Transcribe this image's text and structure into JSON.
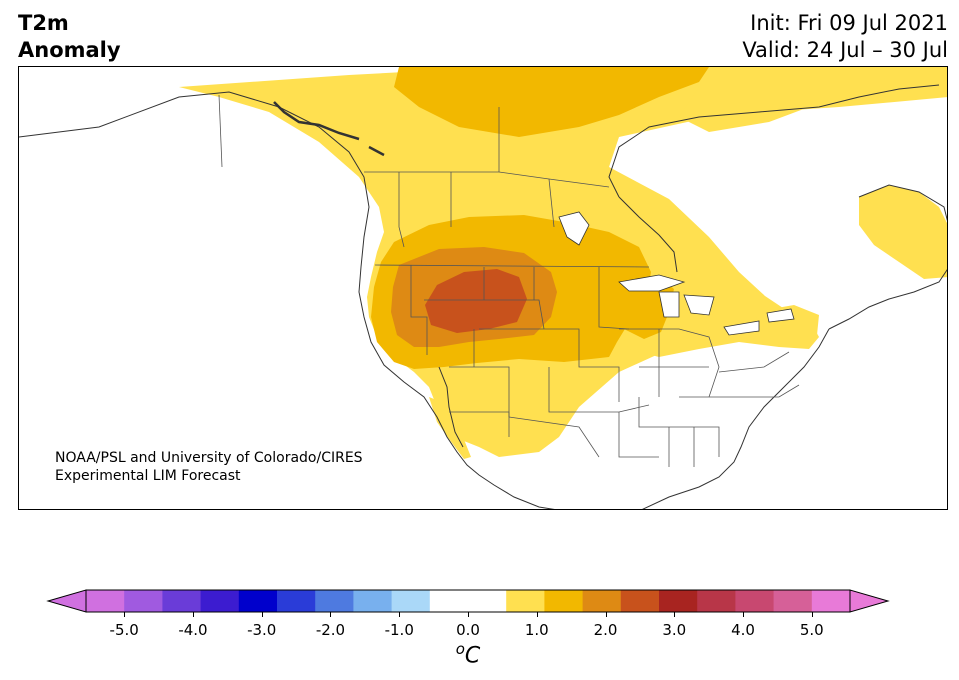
{
  "header": {
    "variable": "T2m",
    "field": "Anomaly",
    "init": "Init: Fri 09 Jul 2021",
    "valid": "Valid: 24 Jul – 30 Jul"
  },
  "credit": {
    "line1": "NOAA/PSL and University of Colorado/CIRES",
    "line2": "Experimental LIM Forecast"
  },
  "colorbar": {
    "unit_symbol": "o",
    "unit_letter": "C",
    "ticks": [
      "-5.0",
      "-4.0",
      "-3.0",
      "-2.0",
      "-1.0",
      "0.0",
      "1.0",
      "2.0",
      "3.0",
      "4.0",
      "5.0"
    ],
    "low_extend_color": "#d070e0",
    "high_extend_color": "#e87ad8",
    "bin_colors": [
      "#d070e0",
      "#a05ae0",
      "#6a3cd8",
      "#3c1cd0",
      "#0000cc",
      "#2a3cd8",
      "#4e7ae0",
      "#78b0ee",
      "#aad8f8",
      "#ffffff",
      "#ffffff",
      "#ffe050",
      "#f2b800",
      "#de8a14",
      "#c8521c",
      "#a82420",
      "#b83648",
      "#c84870",
      "#d66098",
      "#e87ad8"
    ]
  },
  "anomaly_fill_colors": {
    "plus_0_5": "#ffe050",
    "plus_1_0": "#f2b800",
    "plus_1_5": "#de8a14",
    "plus_2_0": "#c8521c"
  }
}
